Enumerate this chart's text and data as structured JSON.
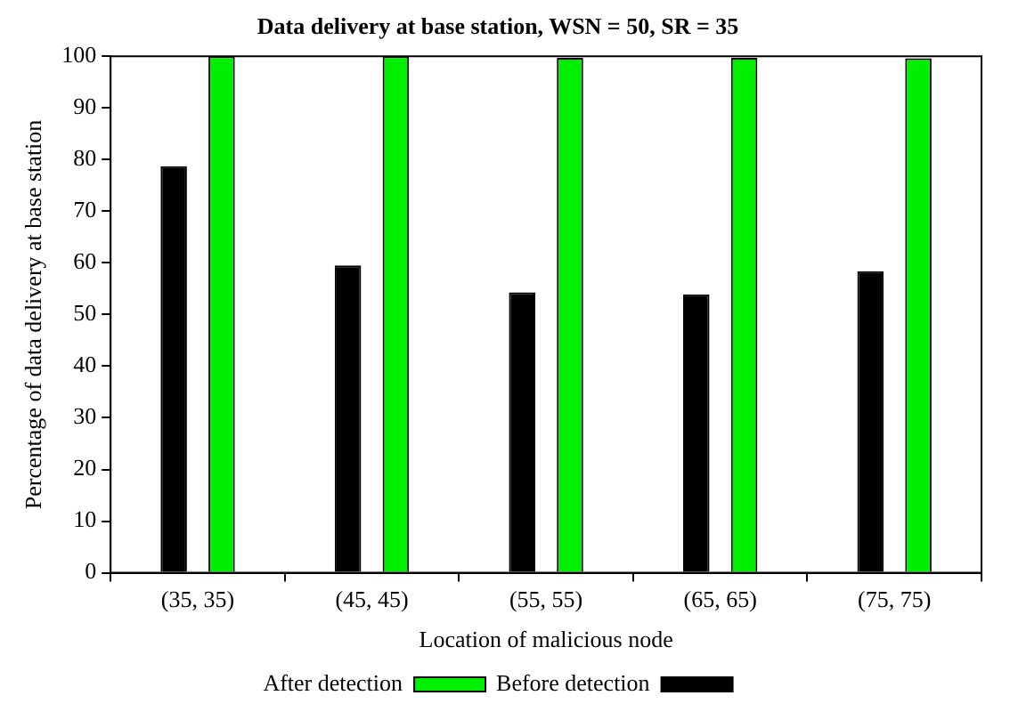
{
  "chart_data": {
    "type": "bar",
    "title": "Data delivery at base station, WSN = 50, SR = 35",
    "xlabel": "Location of malicious node",
    "ylabel": "Percentage of data delivery at base station",
    "categories": [
      "(35, 35)",
      "(45, 45)",
      "(55, 55)",
      "(65, 65)",
      "(75, 75)"
    ],
    "series": [
      {
        "name": "Before detection",
        "color": "#000000",
        "values": [
          78.7,
          59.5,
          54.3,
          53.9,
          58.4
        ]
      },
      {
        "name": "After detection",
        "color": "#00ee00",
        "values": [
          100,
          100,
          99.7,
          99.7,
          99.6
        ]
      }
    ],
    "ylim": [
      0,
      100
    ],
    "yticks": [
      0,
      10,
      20,
      30,
      40,
      50,
      60,
      70,
      80,
      90,
      100
    ],
    "grid": false,
    "legend": "bottom"
  }
}
